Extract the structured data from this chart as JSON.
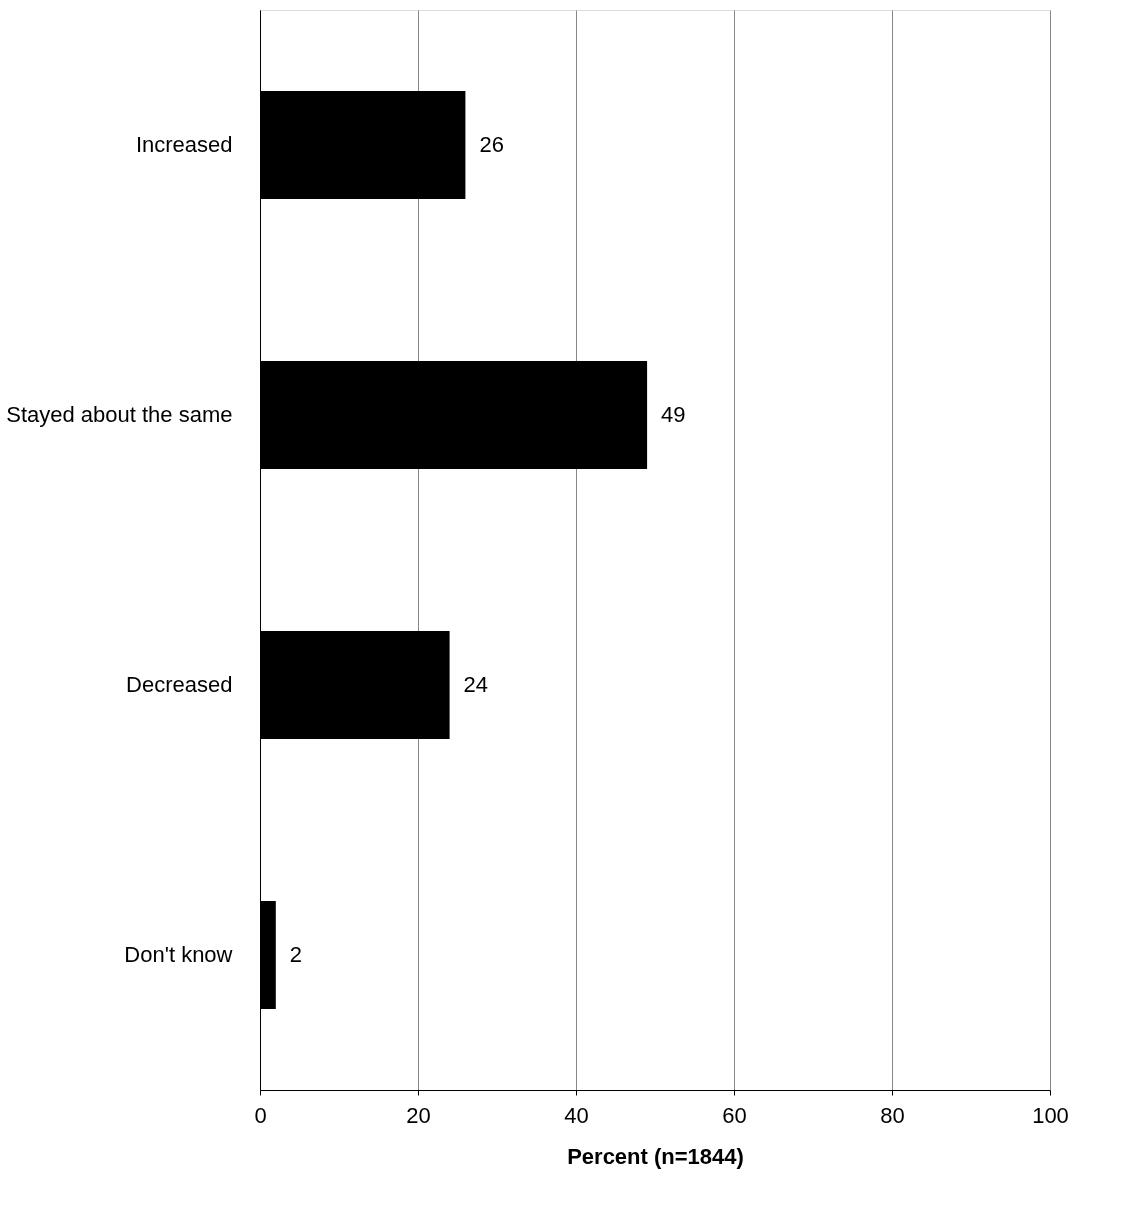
{
  "chart_data": {
    "type": "bar",
    "orientation": "horizontal",
    "xlabel": "Percent (n=1844)",
    "categories": [
      "Increased",
      "Stayed about the same",
      "Decreased",
      "Don't know"
    ],
    "values": [
      26,
      49,
      24,
      2
    ],
    "color": "#000000",
    "xlim": [
      0,
      100
    ],
    "xticks": [
      0,
      20,
      40,
      60,
      80,
      100
    ],
    "grid": "x",
    "data_labels": true
  }
}
